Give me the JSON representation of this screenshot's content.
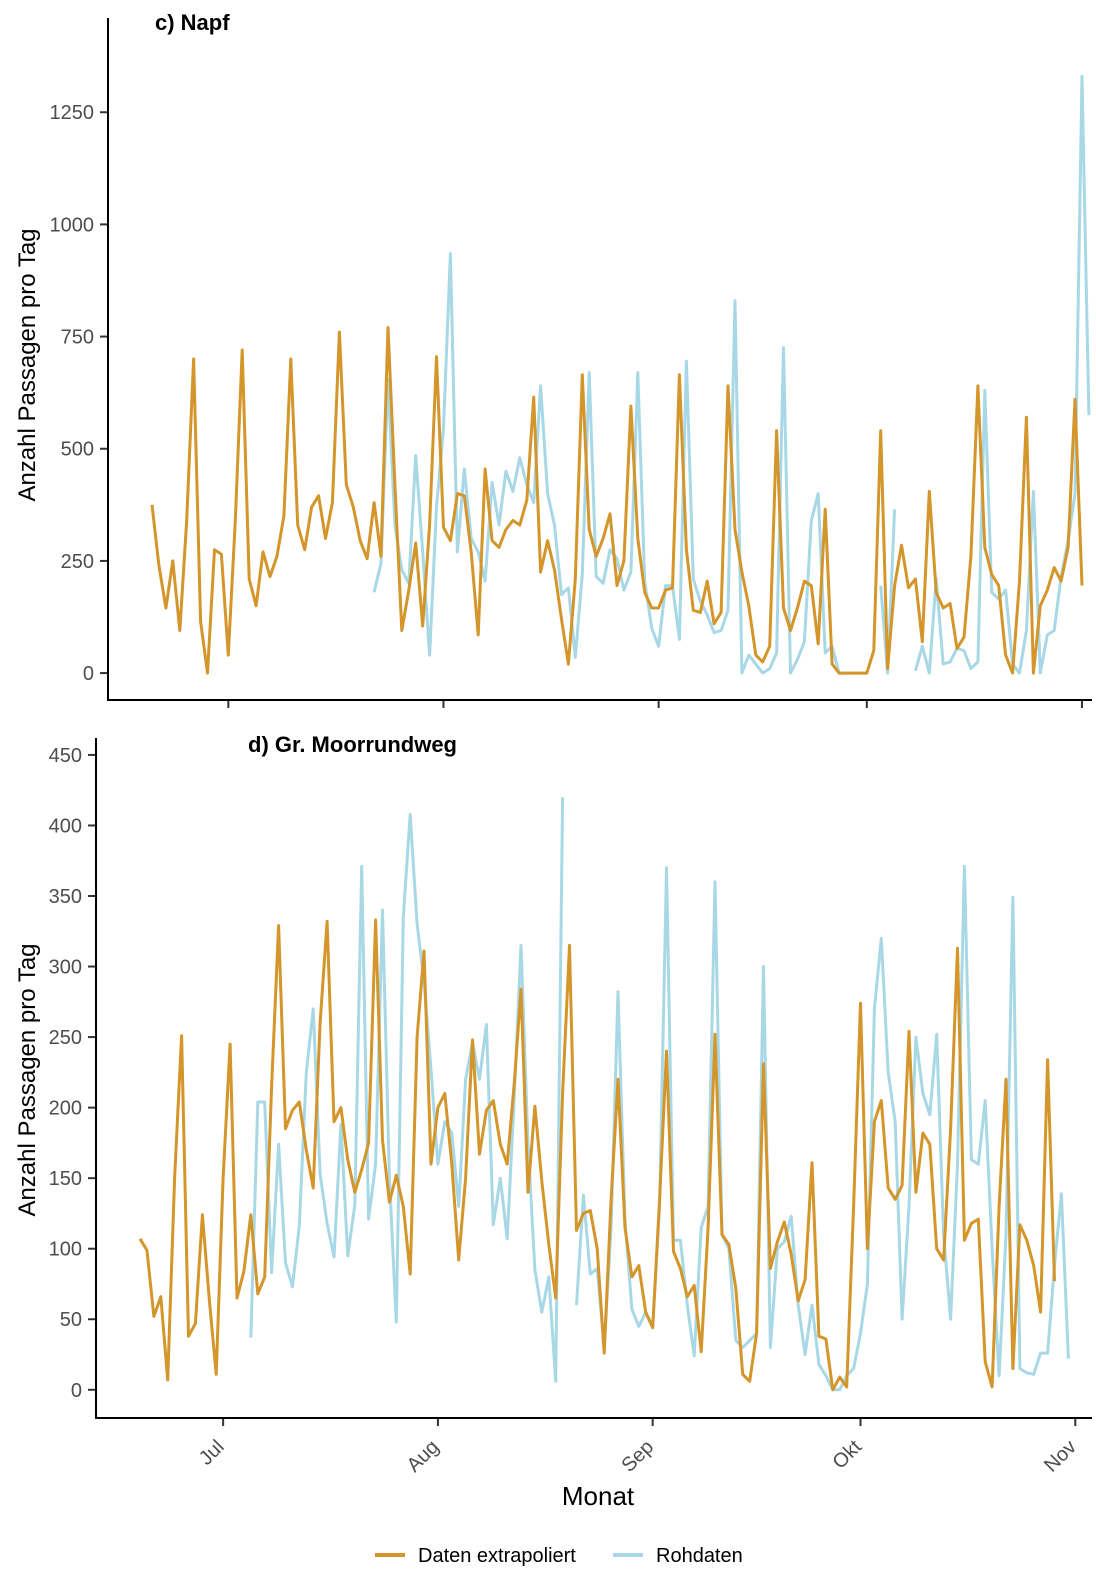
{
  "chart_data": [
    {
      "type": "line",
      "title": "c) Napf",
      "ylabel": "Anzahl Passagen pro Tag",
      "xlabel": "",
      "x_start": "2023-06-20",
      "x_ticks": [
        "Jul",
        "Aug",
        "Sep",
        "Okt",
        "Nov"
      ],
      "yticks": [
        0,
        250,
        500,
        750,
        1000,
        1250
      ],
      "ylim": [
        -60,
        1460
      ],
      "series": [
        {
          "name": "Daten extrapoliert",
          "color": "#D4952B",
          "values": [
            375,
            240,
            145,
            250,
            95,
            340,
            700,
            115,
            0,
            275,
            265,
            40,
            340,
            720,
            210,
            150,
            270,
            215,
            260,
            350,
            700,
            330,
            275,
            370,
            395,
            300,
            380,
            760,
            420,
            370,
            295,
            255,
            380,
            260,
            770,
            420,
            95,
            185,
            290,
            105,
            330,
            705,
            325,
            295,
            400,
            395,
            270,
            85,
            455,
            295,
            280,
            320,
            340,
            330,
            385,
            615,
            225,
            295,
            230,
            120,
            20,
            210,
            665,
            320,
            260,
            300,
            355,
            195,
            250,
            595,
            300,
            180,
            145,
            145,
            185,
            190,
            665,
            275,
            140,
            135,
            205,
            110,
            135,
            640,
            320,
            225,
            150,
            40,
            25,
            60,
            540,
            145,
            95,
            145,
            205,
            195,
            65,
            365,
            20,
            0,
            0,
            0,
            0,
            0,
            50,
            540,
            10,
            195,
            285,
            190,
            210,
            70,
            405,
            180,
            145,
            155,
            55,
            80,
            260,
            640,
            280,
            220,
            195,
            40,
            0,
            205,
            570,
            0,
            150,
            185,
            235,
            205,
            280,
            610,
            195
          ]
        },
        {
          "name": "Rohdaten",
          "color": "#A8D8E6",
          "values": [
            null,
            null,
            null,
            null,
            null,
            null,
            null,
            null,
            null,
            null,
            null,
            null,
            null,
            null,
            null,
            null,
            null,
            null,
            null,
            null,
            null,
            null,
            null,
            null,
            null,
            null,
            null,
            null,
            null,
            null,
            null,
            null,
            180,
            245,
            655,
            330,
            230,
            200,
            485,
            270,
            40,
            370,
            545,
            935,
            270,
            455,
            300,
            270,
            205,
            425,
            330,
            450,
            405,
            480,
            420,
            380,
            640,
            400,
            330,
            175,
            190,
            35,
            220,
            670,
            215,
            200,
            275,
            255,
            185,
            225,
            670,
            205,
            100,
            60,
            195,
            195,
            75,
            695,
            210,
            160,
            130,
            90,
            95,
            140,
            830,
            0,
            40,
            20,
            0,
            10,
            45,
            725,
            0,
            30,
            70,
            340,
            400,
            45,
            60,
            0,
            0,
            null,
            null,
            null,
            null,
            195,
            0,
            365,
            null,
            null,
            5,
            60,
            0,
            210,
            20,
            25,
            55,
            50,
            10,
            25,
            630,
            180,
            165,
            185,
            20,
            0,
            95,
            405,
            0,
            85,
            95,
            215,
            295,
            400,
            1330,
            575
          ]
        }
      ]
    },
    {
      "type": "line",
      "title": "d) Gr. Moorrundweg",
      "ylabel": "Anzahl Passagen pro Tag",
      "xlabel": "Monat",
      "x_start": "2023-06-19",
      "x_ticks": [
        "Jul",
        "Aug",
        "Sep",
        "Okt",
        "Nov"
      ],
      "yticks": [
        0,
        50,
        100,
        150,
        200,
        250,
        300,
        350,
        400,
        450
      ],
      "ylim": [
        -20,
        462
      ],
      "series": [
        {
          "name": "Daten extrapoliert",
          "color": "#D4952B",
          "values": [
            107,
            99,
            52,
            66,
            7,
            150,
            251,
            38,
            47,
            124,
            64,
            11,
            150,
            245,
            65,
            84,
            124,
            68,
            80,
            215,
            329,
            185,
            198,
            204,
            170,
            143,
            260,
            332,
            190,
            200,
            163,
            140,
            156,
            175,
            333,
            177,
            133,
            152,
            130,
            82,
            250,
            311,
            160,
            200,
            210,
            160,
            92,
            150,
            248,
            167,
            198,
            205,
            174,
            160,
            216,
            284,
            140,
            201,
            148,
            103,
            65,
            210,
            315,
            113,
            125,
            127,
            100,
            26,
            135,
            220,
            115,
            80,
            88,
            55,
            44,
            135,
            240,
            98,
            86,
            66,
            74,
            27,
            115,
            252,
            110,
            103,
            72,
            11,
            6,
            40,
            231,
            86,
            105,
            119,
            96,
            63,
            78,
            161,
            38,
            36,
            0,
            9,
            2,
            130,
            274,
            100,
            190,
            205,
            143,
            135,
            145,
            254,
            140,
            182,
            174,
            100,
            92,
            185,
            313,
            106,
            118,
            121,
            20,
            2,
            130,
            220,
            15,
            117,
            106,
            88,
            55,
            234,
            77
          ]
        },
        {
          "name": "Rohdaten",
          "color": "#A8D8E6",
          "values": [
            null,
            null,
            null,
            null,
            null,
            null,
            null,
            null,
            null,
            null,
            null,
            null,
            null,
            null,
            null,
            null,
            37,
            204,
            204,
            83,
            174,
            90,
            73,
            116,
            225,
            270,
            153,
            118,
            94,
            188,
            95,
            131,
            371,
            121,
            160,
            340,
            150,
            48,
            335,
            408,
            330,
            290,
            227,
            160,
            190,
            182,
            130,
            220,
            246,
            220,
            259,
            117,
            150,
            107,
            205,
            315,
            175,
            85,
            55,
            80,
            6,
            420,
            null,
            60,
            138,
            82,
            86,
            30,
            115,
            282,
            120,
            57,
            45,
            55,
            45,
            130,
            370,
            106,
            106,
            60,
            24,
            115,
            130,
            360,
            110,
            100,
            35,
            30,
            35,
            40,
            300,
            30,
            100,
            105,
            123,
            60,
            25,
            60,
            18,
            10,
            0,
            0,
            10,
            15,
            40,
            75,
            270,
            320,
            225,
            190,
            50,
            130,
            250,
            210,
            195,
            252,
            110,
            50,
            160,
            371,
            163,
            160,
            205,
            100,
            10,
            110,
            349,
            15,
            12,
            11,
            26,
            26,
            88,
            139,
            22
          ]
        }
      ]
    }
  ],
  "legend": {
    "items": [
      {
        "label": "Daten extrapoliert",
        "color": "#D4952B"
      },
      {
        "label": "Rohdaten",
        "color": "#A8D8E6"
      }
    ]
  }
}
